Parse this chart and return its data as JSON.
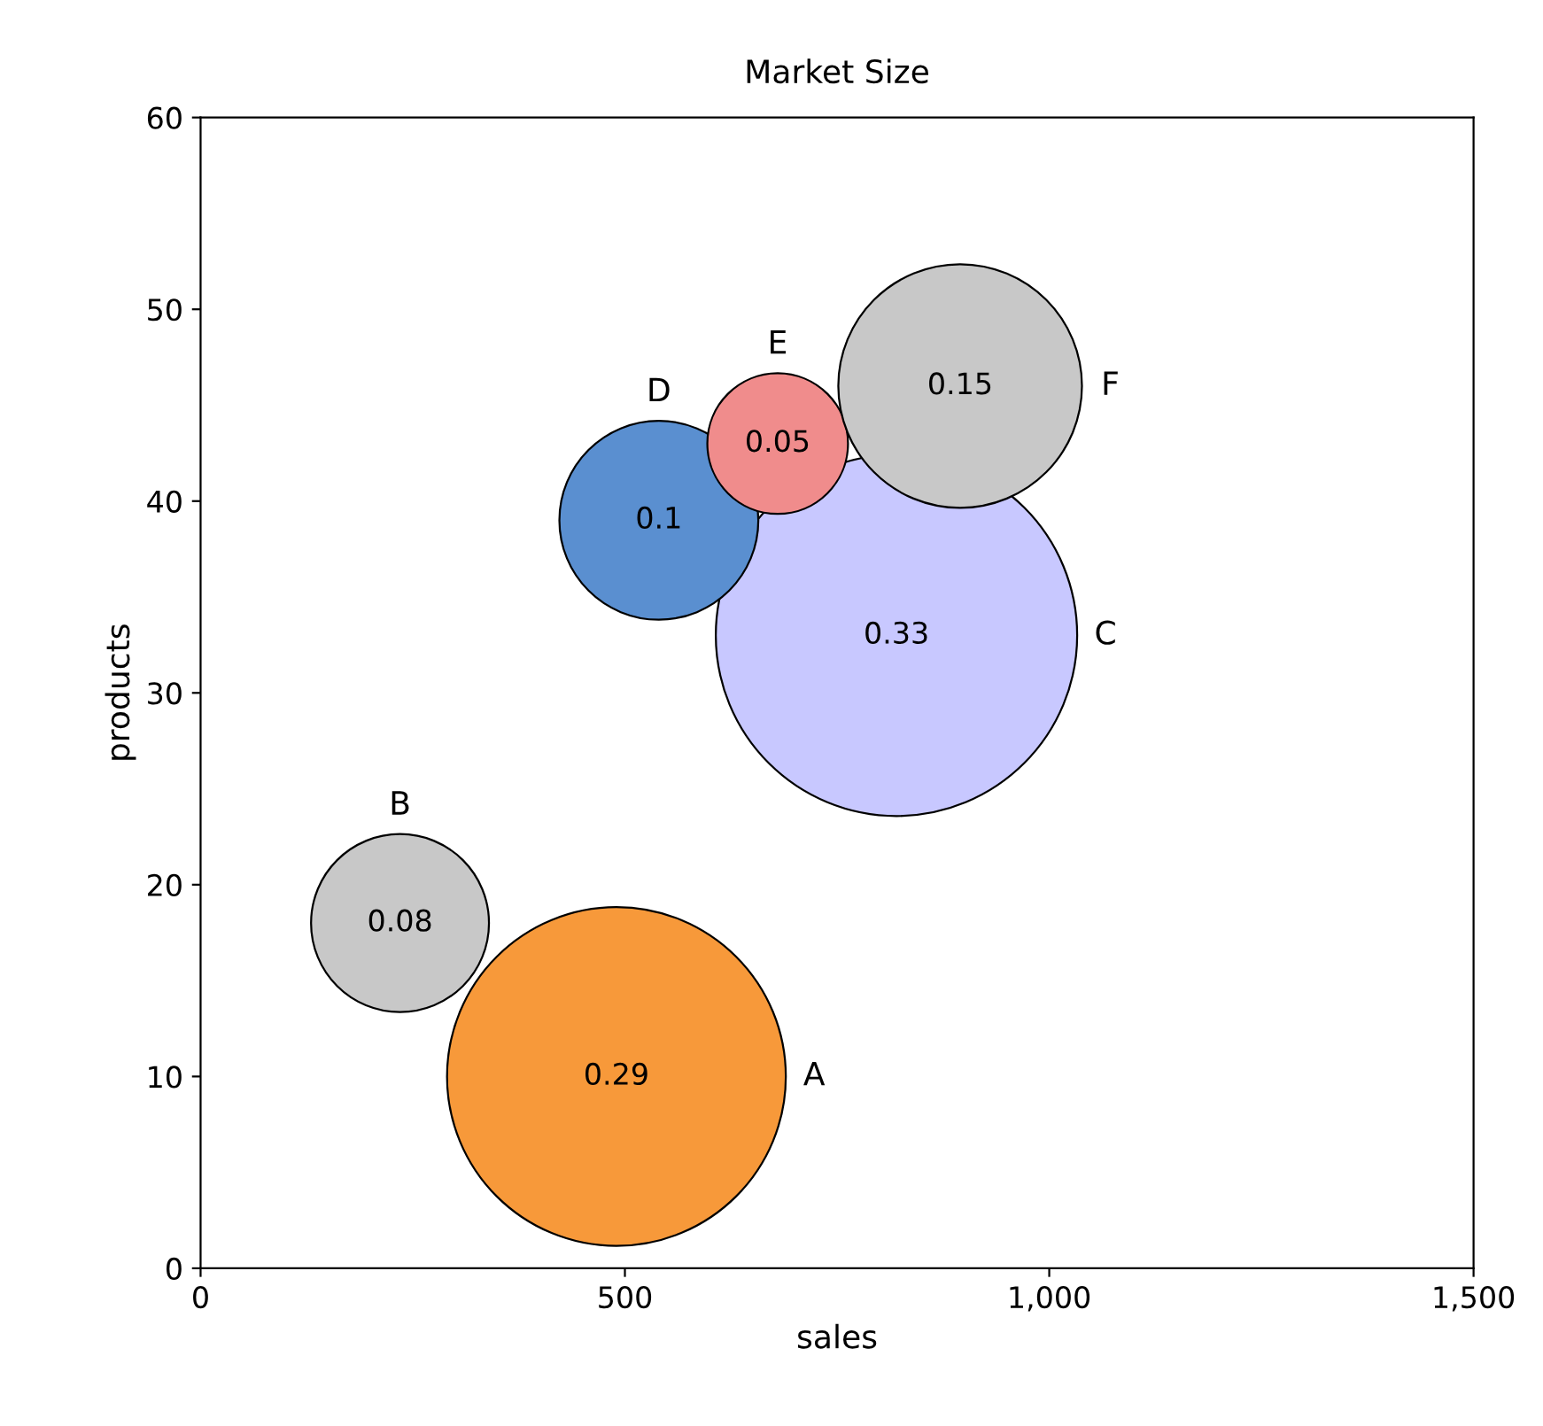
{
  "chart_data": {
    "type": "bubble",
    "title": "Market Size",
    "xlabel": "sales",
    "ylabel": "products",
    "xlim": [
      0,
      1500
    ],
    "xticks": [
      0,
      500,
      {
        "value": 1000,
        "label": "1,000"
      },
      {
        "value": 1500,
        "label": "1,500"
      }
    ],
    "ylim": [
      0,
      60
    ],
    "yticks": [
      0,
      10,
      20,
      30,
      40,
      50,
      60
    ],
    "grid": false,
    "legend": false,
    "series": [
      {
        "name": "A",
        "color": "#f7993a",
        "x": [
          490
        ],
        "values": [
          10
        ],
        "sizes": [
          0.29
        ],
        "value_labels": [
          "0.29"
        ]
      },
      {
        "name": "B",
        "color": "#c8c8c8",
        "x": [
          235
        ],
        "values": [
          18
        ],
        "sizes": [
          0.08
        ],
        "value_labels": [
          "0.08"
        ]
      },
      {
        "name": "C",
        "color": "#c8c8ff",
        "x": [
          820
        ],
        "values": [
          33
        ],
        "sizes": [
          0.33
        ],
        "value_labels": [
          "0.33"
        ]
      },
      {
        "name": "D",
        "color": "#5a8fd0",
        "x": [
          540
        ],
        "values": [
          39
        ],
        "sizes": [
          0.1
        ],
        "value_labels": [
          "0.1"
        ]
      },
      {
        "name": "E",
        "color": "#f08c8c",
        "x": [
          680
        ],
        "values": [
          43
        ],
        "sizes": [
          0.05
        ],
        "value_labels": [
          "0.05"
        ]
      },
      {
        "name": "F",
        "color": "#c8c8c8",
        "x": [
          895
        ],
        "values": [
          46
        ],
        "sizes": [
          0.15
        ],
        "value_labels": [
          "0.15"
        ]
      }
    ]
  }
}
